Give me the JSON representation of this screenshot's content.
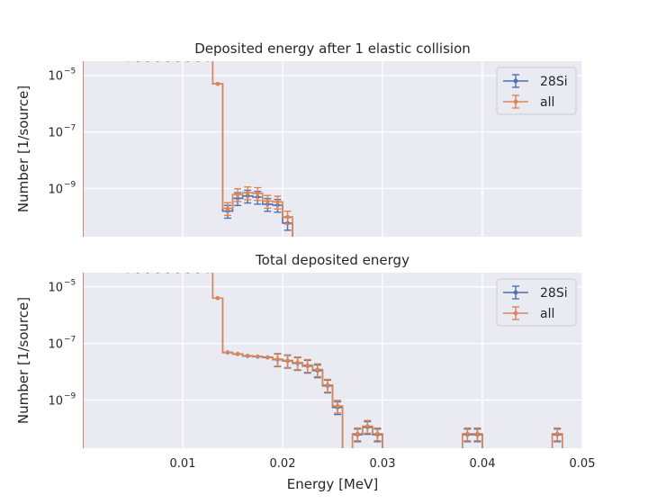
{
  "colors": {
    "si": "#4c72b0",
    "all": "#dd8452",
    "panel": "#eaeaf2",
    "grid": "#ffffff",
    "text": "#262626"
  },
  "chart_data": [
    {
      "type": "line",
      "title": "Deposited energy after 1 elastic collision",
      "ylabel": "Number [1/source]",
      "xlabel": "",
      "xlim": [
        0,
        0.05
      ],
      "ylim_log10": [
        -10.7,
        -4.5
      ],
      "yscale": "log",
      "grid": true,
      "legend_position": "top-right",
      "xticks": [
        0.01,
        0.02,
        0.03,
        0.04,
        0.05
      ],
      "yticks": [
        {
          "base": "10",
          "exp": "−5",
          "value": -5
        },
        {
          "base": "10",
          "exp": "−7",
          "value": -7
        },
        {
          "base": "10",
          "exp": "−9",
          "value": -9
        }
      ],
      "series": [
        {
          "name": "28Si",
          "x": [
            0.0005,
            0.0015,
            0.0025,
            0.0035,
            0.0045,
            0.0055,
            0.0065,
            0.0075,
            0.0085,
            0.0095,
            0.0105,
            0.0115,
            0.0125,
            0.0135,
            0.0145,
            0.0155,
            0.0165,
            0.0175,
            0.0185,
            0.0195,
            0.0205
          ],
          "y": [
            4.6e-05,
            4.3e-05,
            4e-05,
            3.8e-05,
            3.6e-05,
            3.5e-05,
            3.5e-05,
            3.5e-05,
            3.5e-05,
            3.5e-05,
            3.5e-05,
            3.5e-05,
            3.6e-05,
            5e-06,
            1.6e-10,
            4.5e-10,
            5.5e-10,
            5e-10,
            2.8e-10,
            2.6e-10,
            6e-11
          ]
        },
        {
          "name": "all",
          "x": [
            0.0005,
            0.0015,
            0.0025,
            0.0035,
            0.0045,
            0.0055,
            0.0065,
            0.0075,
            0.0085,
            0.0095,
            0.0105,
            0.0115,
            0.0125,
            0.0135,
            0.0145,
            0.0155,
            0.0165,
            0.0175,
            0.0185,
            0.0195,
            0.0205
          ],
          "y": [
            4.6e-05,
            4.3e-05,
            4e-05,
            3.8e-05,
            3.6e-05,
            3.5e-05,
            3.5e-05,
            3.5e-05,
            3.5e-05,
            3.5e-05,
            3.5e-05,
            3.5e-05,
            3.6e-05,
            5e-06,
            2e-10,
            6.2e-10,
            7.2e-10,
            6.8e-10,
            3.6e-10,
            3.4e-10,
            1e-10
          ]
        }
      ]
    },
    {
      "type": "line",
      "title": "Total deposited energy",
      "ylabel": "Number [1/source]",
      "xlabel": "Energy [MeV]",
      "xlim": [
        0,
        0.05
      ],
      "ylim_log10": [
        -10.7,
        -4.5
      ],
      "yscale": "log",
      "grid": true,
      "legend_position": "top-right",
      "xticks": [
        0.01,
        0.02,
        0.03,
        0.04,
        0.05
      ],
      "yticks": [
        {
          "base": "10",
          "exp": "−5",
          "value": -5
        },
        {
          "base": "10",
          "exp": "−7",
          "value": -7
        },
        {
          "base": "10",
          "exp": "−9",
          "value": -9
        }
      ],
      "series": [
        {
          "name": "28Si",
          "x": [
            0.0005,
            0.0015,
            0.0025,
            0.0035,
            0.0045,
            0.0055,
            0.0065,
            0.0075,
            0.0085,
            0.0095,
            0.0105,
            0.0115,
            0.0125,
            0.0135,
            0.0145,
            0.0155,
            0.0165,
            0.0175,
            0.0185,
            0.0195,
            0.0205,
            0.0215,
            0.0225,
            0.0235,
            0.0245,
            0.0255,
            0.0275,
            0.0285,
            0.0295,
            0.0385,
            0.0395,
            0.0475
          ],
          "y": [
            4.6e-05,
            4.3e-05,
            4e-05,
            3.8e-05,
            3.6e-05,
            3.5e-05,
            3.5e-05,
            3.5e-05,
            3.5e-05,
            3.5e-05,
            3.5e-05,
            3.5e-05,
            3.6e-05,
            4e-06,
            4.8e-08,
            4.2e-08,
            3.6e-08,
            3.4e-08,
            3.2e-08,
            2.7e-08,
            2.4e-08,
            2e-08,
            1.6e-08,
            1.1e-08,
            3.2e-09,
            5.5e-10,
            6e-11,
            1.1e-10,
            6e-11,
            6e-11,
            6e-11,
            6e-11
          ]
        },
        {
          "name": "all",
          "x": [
            0.0005,
            0.0015,
            0.0025,
            0.0035,
            0.0045,
            0.0055,
            0.0065,
            0.0075,
            0.0085,
            0.0095,
            0.0105,
            0.0115,
            0.0125,
            0.0135,
            0.0145,
            0.0155,
            0.0165,
            0.0175,
            0.0185,
            0.0195,
            0.0205,
            0.0215,
            0.0225,
            0.0235,
            0.0245,
            0.0255,
            0.0275,
            0.0285,
            0.0295,
            0.0385,
            0.0395,
            0.0475
          ],
          "y": [
            4.6e-05,
            4.3e-05,
            4e-05,
            3.8e-05,
            3.6e-05,
            3.5e-05,
            3.5e-05,
            3.5e-05,
            3.5e-05,
            3.5e-05,
            3.5e-05,
            3.5e-05,
            3.6e-05,
            4e-06,
            4.9e-08,
            4.3e-08,
            3.7e-08,
            3.5e-08,
            3.3e-08,
            2.8e-08,
            2.5e-08,
            2.1e-08,
            1.7e-08,
            1.2e-08,
            3.4e-09,
            6.2e-10,
            6.5e-11,
            1.2e-10,
            6.5e-11,
            6.5e-11,
            6.5e-11,
            6.5e-11
          ]
        }
      ]
    }
  ]
}
